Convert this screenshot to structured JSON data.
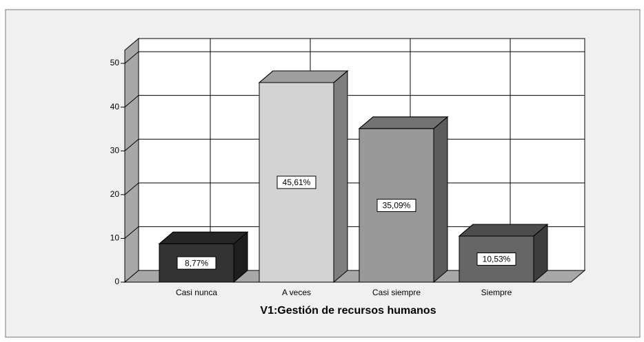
{
  "chart_data": {
    "type": "bar3d",
    "xlabel": "V1:Gestión de recursos humanos",
    "categories": [
      "Casi nunca",
      "A veces",
      "Casi siempre",
      "Siempre"
    ],
    "values": [
      8.77,
      45.61,
      35.09,
      10.53
    ],
    "value_labels": [
      "8,77%",
      "45,61%",
      "35,09%",
      "10,53%"
    ],
    "colors": [
      "#333333",
      "#d3d3d3",
      "#999999",
      "#666666"
    ],
    "ylim": [
      0,
      53
    ],
    "yticks": [
      0,
      10,
      20,
      30,
      40,
      50
    ],
    "grid": true
  }
}
